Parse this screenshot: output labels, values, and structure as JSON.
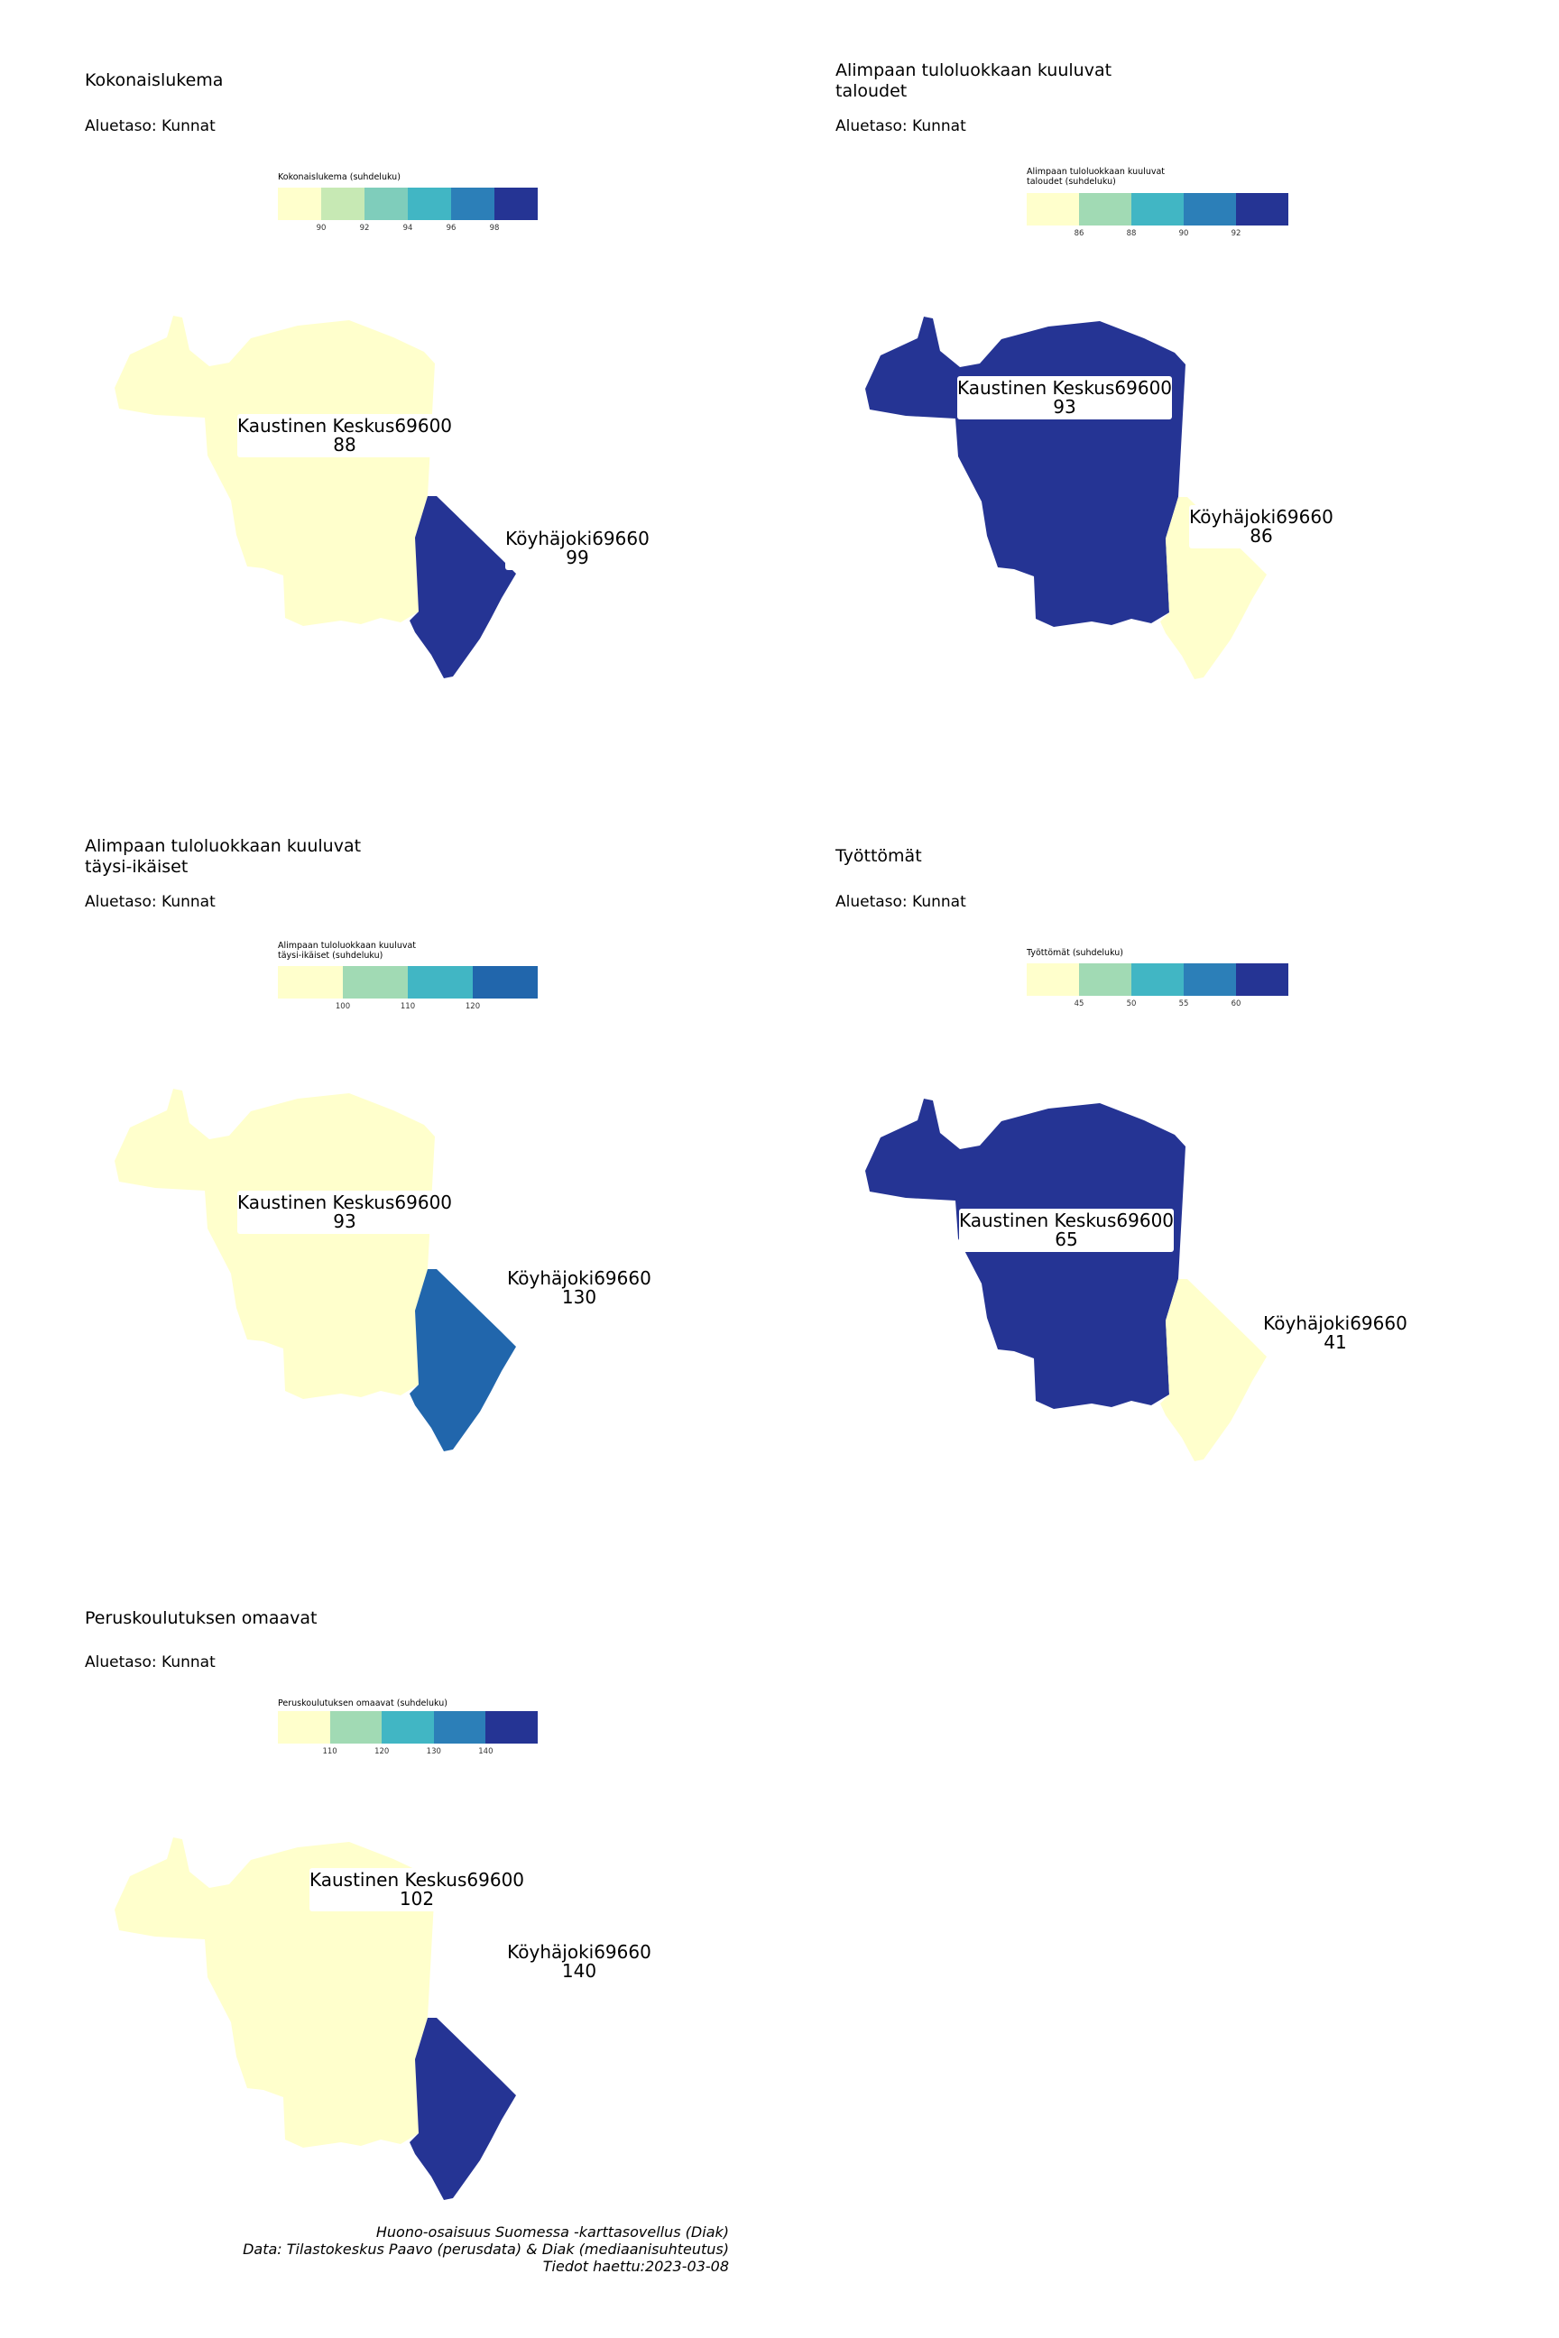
{
  "palette": {
    "c1": "#ffffcc",
    "c2": "#c7e9b4",
    "c2b": "#a1dab4",
    "c3": "#7fcdbb",
    "c4": "#41b6c4",
    "c5": "#2c7fb8",
    "c5b": "#2166ac",
    "c6": "#253494"
  },
  "panels": [
    {
      "title": "Kokonaislukema",
      "subtitle": "Aluetaso: Kunnat",
      "legend_title": "Kokonaislukema (suhdeluku)",
      "legend_colors": [
        "#ffffcc",
        "#c7e9b4",
        "#7fcdbb",
        "#41b6c4",
        "#2c7fb8",
        "#253494"
      ],
      "legend_ticks": [
        "90",
        "92",
        "94",
        "96",
        "98"
      ],
      "regions": [
        {
          "name": "Kaustinen Keskus69600",
          "value": "88",
          "color": "#ffffcc"
        },
        {
          "name": "Köyhäjoki69660",
          "value": "99",
          "color": "#253494"
        }
      ]
    },
    {
      "title": "Alimpaan tuloluokkaan kuuluvat\ntaloudet",
      "subtitle": "Aluetaso: Kunnat",
      "legend_title": "Alimpaan tuloluokkaan kuuluvat\ntaloudet (suhdeluku)",
      "legend_colors": [
        "#ffffcc",
        "#a1dab4",
        "#41b6c4",
        "#2c7fb8",
        "#253494"
      ],
      "legend_ticks": [
        "86",
        "88",
        "90",
        "92"
      ],
      "regions": [
        {
          "name": "Kaustinen Keskus69600",
          "value": "93",
          "color": "#253494"
        },
        {
          "name": "Köyhäjoki69660",
          "value": "86",
          "color": "#ffffcc"
        }
      ]
    },
    {
      "title": "Alimpaan tuloluokkaan kuuluvat\ntäysi-ikäiset",
      "subtitle": "Aluetaso: Kunnat",
      "legend_title": "Alimpaan tuloluokkaan kuuluvat\ntäysi-ikäiset (suhdeluku)",
      "legend_colors": [
        "#ffffcc",
        "#a1dab4",
        "#41b6c4",
        "#2166ac"
      ],
      "legend_ticks": [
        "100",
        "110",
        "120"
      ],
      "regions": [
        {
          "name": "Kaustinen Keskus69600",
          "value": "93",
          "color": "#ffffcc"
        },
        {
          "name": "Köyhäjoki69660",
          "value": "130",
          "color": "#2166ac"
        }
      ]
    },
    {
      "title": "Työttömät",
      "subtitle": "Aluetaso: Kunnat",
      "legend_title": "Työttömät (suhdeluku)",
      "legend_colors": [
        "#ffffcc",
        "#a1dab4",
        "#41b6c4",
        "#2c7fb8",
        "#253494"
      ],
      "legend_ticks": [
        "45",
        "50",
        "55",
        "60"
      ],
      "regions": [
        {
          "name": "Kaustinen Keskus69600",
          "value": "65",
          "color": "#253494"
        },
        {
          "name": "Köyhäjoki69660",
          "value": "41",
          "color": "#ffffcc"
        }
      ]
    },
    {
      "title": "Peruskoulutuksen omaavat",
      "subtitle": "Aluetaso: Kunnat",
      "legend_title": "Peruskoulutuksen omaavat (suhdeluku)",
      "legend_colors": [
        "#ffffcc",
        "#a1dab4",
        "#41b6c4",
        "#2c7fb8",
        "#253494"
      ],
      "legend_ticks": [
        "110",
        "120",
        "130",
        "140"
      ],
      "regions": [
        {
          "name": "Kaustinen Keskus69600",
          "value": "102",
          "color": "#ffffcc"
        },
        {
          "name": "Köyhäjoki69660",
          "value": "140",
          "color": "#253494"
        }
      ]
    }
  ],
  "credits": {
    "line1": "Huono-osaisuus Suomessa -karttasovellus (Diak)",
    "line2": "Data: Tilastokeskus Paavo (perusdata) & Diak (mediaanisuhteutus)",
    "line3": "Tiedot haettu:2023-03-08"
  }
}
